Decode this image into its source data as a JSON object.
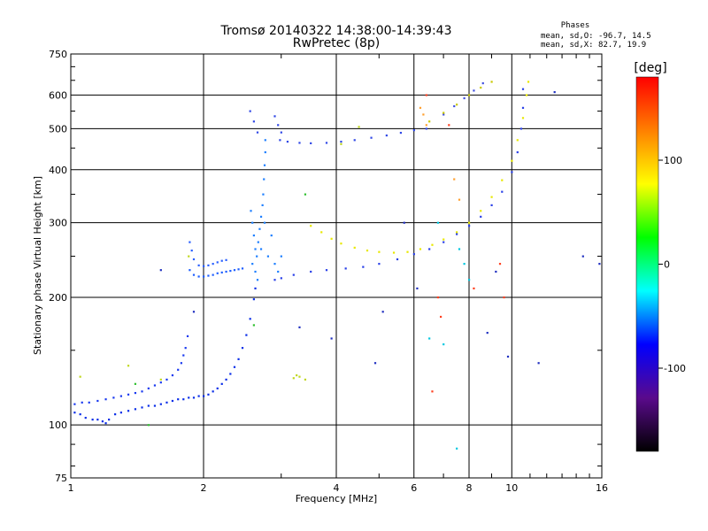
{
  "chart_data": {
    "type": "scatter",
    "title": "Tromsø 20140322 14:38:00-14:39:43",
    "subtitle": "RwPretec (8p)",
    "xlabel": "Frequency [MHz]",
    "ylabel": "Stationary phase Virtual Height [km]",
    "x_scale": "log",
    "y_scale": "log",
    "xlim": [
      1,
      16
    ],
    "ylim": [
      75,
      750
    ],
    "x_ticks": [
      1,
      2,
      4,
      6,
      8,
      10,
      16
    ],
    "y_ticks": [
      75,
      100,
      200,
      300,
      400,
      500,
      600,
      750
    ],
    "grid": true,
    "stats": {
      "heading": "Phases",
      "line_o": "mean, sd,O: -96.7, 14.5",
      "line_x": "mean, sd,X:  82.7, 19.9"
    },
    "colorbar": {
      "unit": "[deg]",
      "ticks": [
        100,
        0,
        -100
      ],
      "range": [
        -180,
        180
      ],
      "stops": [
        "#000000",
        "#5a0a8c",
        "#0000ff",
        "#00ffff",
        "#00ff00",
        "#ffff00",
        "#ff8000",
        "#ff0000"
      ]
    },
    "series": [
      {
        "color": "#0a2ee8",
        "points": [
          [
            1.02,
            107
          ],
          [
            1.05,
            106
          ],
          [
            1.08,
            104
          ],
          [
            1.12,
            103
          ],
          [
            1.15,
            103
          ],
          [
            1.18,
            102
          ],
          [
            1.2,
            101
          ],
          [
            1.22,
            103
          ],
          [
            1.26,
            106
          ],
          [
            1.3,
            107
          ],
          [
            1.35,
            108
          ],
          [
            1.4,
            109
          ],
          [
            1.45,
            110
          ],
          [
            1.5,
            111
          ],
          [
            1.55,
            111
          ],
          [
            1.6,
            112
          ],
          [
            1.65,
            113
          ],
          [
            1.7,
            114
          ],
          [
            1.75,
            115
          ],
          [
            1.8,
            115
          ],
          [
            1.85,
            116
          ],
          [
            1.9,
            116
          ],
          [
            1.95,
            117
          ],
          [
            2.0,
            117
          ],
          [
            2.05,
            118
          ],
          [
            2.1,
            120
          ],
          [
            2.15,
            122
          ],
          [
            2.2,
            125
          ],
          [
            2.25,
            128
          ],
          [
            2.3,
            132
          ],
          [
            2.35,
            137
          ],
          [
            2.4,
            143
          ],
          [
            2.45,
            152
          ],
          [
            2.5,
            163
          ],
          [
            2.55,
            178
          ],
          [
            2.6,
            198
          ],
          [
            2.62,
            210
          ]
        ]
      },
      {
        "color": "#1a3af0",
        "points": [
          [
            1.02,
            112
          ],
          [
            1.06,
            113
          ],
          [
            1.1,
            113
          ],
          [
            1.15,
            114
          ],
          [
            1.2,
            115
          ],
          [
            1.25,
            116
          ],
          [
            1.3,
            117
          ],
          [
            1.35,
            118
          ],
          [
            1.4,
            119
          ],
          [
            1.45,
            120
          ],
          [
            1.5,
            122
          ],
          [
            1.55,
            124
          ],
          [
            1.6,
            126
          ],
          [
            1.65,
            128
          ],
          [
            1.7,
            131
          ],
          [
            1.75,
            135
          ],
          [
            1.78,
            140
          ],
          [
            1.8,
            146
          ],
          [
            1.82,
            152
          ],
          [
            1.84,
            162
          ]
        ]
      },
      {
        "color": "#1f5fff",
        "points": [
          [
            1.86,
            232
          ],
          [
            1.9,
            226
          ],
          [
            1.95,
            224
          ],
          [
            2.0,
            224
          ],
          [
            2.05,
            225
          ],
          [
            2.1,
            226
          ],
          [
            2.15,
            228
          ],
          [
            2.2,
            229
          ],
          [
            2.25,
            230
          ],
          [
            2.3,
            231
          ],
          [
            2.35,
            232
          ],
          [
            2.4,
            233
          ],
          [
            2.45,
            234
          ]
        ]
      },
      {
        "color": "#2a60ff",
        "points": [
          [
            1.86,
            270
          ],
          [
            1.88,
            258
          ],
          [
            1.9,
            246
          ],
          [
            1.95,
            238
          ],
          [
            2.0,
            237
          ],
          [
            2.05,
            238
          ],
          [
            2.1,
            240
          ],
          [
            2.15,
            242
          ],
          [
            2.2,
            244
          ],
          [
            2.25,
            245
          ]
        ]
      },
      {
        "color": "#1e7fff",
        "points": [
          [
            2.62,
            230
          ],
          [
            2.64,
            250
          ],
          [
            2.66,
            270
          ],
          [
            2.68,
            290
          ],
          [
            2.7,
            310
          ],
          [
            2.72,
            330
          ],
          [
            2.73,
            350
          ],
          [
            2.74,
            380
          ],
          [
            2.75,
            410
          ],
          [
            2.76,
            440
          ],
          [
            2.76,
            470
          ],
          [
            2.62,
            260
          ],
          [
            2.6,
            280
          ],
          [
            2.58,
            300
          ],
          [
            2.56,
            320
          ],
          [
            2.58,
            240
          ],
          [
            2.7,
            260
          ],
          [
            2.8,
            250
          ],
          [
            2.85,
            280
          ],
          [
            2.9,
            240
          ],
          [
            2.95,
            230
          ],
          [
            3.0,
            250
          ],
          [
            2.65,
            220
          ],
          [
            2.75,
            300
          ]
        ]
      },
      {
        "color": "#2a40e8",
        "points": [
          [
            2.9,
            220
          ],
          [
            3.0,
            222
          ],
          [
            3.2,
            226
          ],
          [
            3.5,
            230
          ],
          [
            3.8,
            232
          ],
          [
            4.2,
            234
          ],
          [
            4.6,
            236
          ],
          [
            5.0,
            240
          ],
          [
            5.5,
            246
          ],
          [
            6.0,
            253
          ],
          [
            6.5,
            260
          ],
          [
            7.0,
            270
          ],
          [
            7.5,
            282
          ],
          [
            8.0,
            295
          ],
          [
            8.5,
            310
          ],
          [
            9.0,
            330
          ],
          [
            9.5,
            355
          ],
          [
            10.0,
            395
          ],
          [
            10.3,
            440
          ],
          [
            10.5,
            500
          ],
          [
            10.6,
            560
          ],
          [
            10.6,
            620
          ]
        ]
      },
      {
        "color": "#e8e800",
        "points": [
          [
            3.5,
            295
          ],
          [
            3.7,
            285
          ],
          [
            3.9,
            275
          ],
          [
            4.1,
            268
          ],
          [
            4.4,
            262
          ],
          [
            4.7,
            258
          ],
          [
            5.0,
            256
          ],
          [
            5.4,
            255
          ],
          [
            5.8,
            256
          ],
          [
            6.2,
            260
          ],
          [
            6.6,
            266
          ],
          [
            7.0,
            274
          ],
          [
            7.5,
            285
          ],
          [
            8.0,
            300
          ],
          [
            8.5,
            320
          ],
          [
            9.0,
            345
          ],
          [
            9.5,
            378
          ],
          [
            10.0,
            420
          ],
          [
            10.3,
            470
          ],
          [
            10.6,
            530
          ],
          [
            10.8,
            600
          ],
          [
            10.9,
            645
          ]
        ]
      },
      {
        "color": "#3048e6",
        "points": [
          [
            2.98,
            470
          ],
          [
            3.1,
            466
          ],
          [
            3.3,
            463
          ],
          [
            3.5,
            462
          ],
          [
            3.8,
            463
          ],
          [
            4.1,
            466
          ],
          [
            4.4,
            470
          ],
          [
            4.8,
            476
          ],
          [
            5.2,
            482
          ],
          [
            5.6,
            489
          ],
          [
            6.0,
            496
          ],
          [
            6.4,
            500
          ]
        ]
      },
      {
        "color": "#3048e6",
        "points": [
          [
            2.55,
            550
          ],
          [
            2.6,
            520
          ],
          [
            2.65,
            490
          ],
          [
            2.9,
            535
          ],
          [
            2.95,
            510
          ],
          [
            3.0,
            490
          ]
        ]
      },
      {
        "color": "#4050e0",
        "points": [
          [
            7.0,
            540
          ],
          [
            7.4,
            565
          ],
          [
            7.8,
            590
          ],
          [
            8.2,
            615
          ],
          [
            8.6,
            640
          ]
        ]
      },
      {
        "color": "#c8c800",
        "points": [
          [
            6.5,
            520
          ],
          [
            7.0,
            545
          ],
          [
            7.5,
            570
          ],
          [
            8.0,
            600
          ],
          [
            8.5,
            625
          ],
          [
            9.0,
            645
          ]
        ]
      },
      {
        "color": "#ffa030",
        "points": [
          [
            6.2,
            560
          ],
          [
            6.3,
            540
          ],
          [
            6.4,
            510
          ],
          [
            7.4,
            380
          ],
          [
            7.6,
            340
          ]
        ]
      },
      {
        "color": "#ff4020",
        "points": [
          [
            6.4,
            600
          ],
          [
            7.2,
            510
          ],
          [
            8.2,
            210
          ],
          [
            9.4,
            240
          ],
          [
            9.6,
            200
          ],
          [
            6.9,
            180
          ],
          [
            6.8,
            200
          ],
          [
            6.6,
            120
          ]
        ]
      },
      {
        "color": "#00c8e0",
        "points": [
          [
            6.8,
            300
          ],
          [
            7.6,
            260
          ],
          [
            7.8,
            240
          ],
          [
            8.0,
            220
          ],
          [
            7.5,
            88
          ],
          [
            6.5,
            160
          ],
          [
            7.0,
            155
          ]
        ]
      },
      {
        "color": "#c0d820",
        "points": [
          [
            3.2,
            129
          ],
          [
            3.25,
            131
          ],
          [
            3.3,
            130
          ],
          [
            3.4,
            128
          ],
          [
            1.05,
            130
          ],
          [
            1.35,
            138
          ],
          [
            1.6,
            128
          ],
          [
            1.85,
            250
          ],
          [
            4.1,
            460
          ],
          [
            4.5,
            505
          ]
        ]
      },
      {
        "color": "#30c030",
        "points": [
          [
            1.5,
            100
          ],
          [
            1.4,
            125
          ],
          [
            3.4,
            350
          ],
          [
            2.6,
            172
          ]
        ]
      },
      {
        "color": "#2030c0",
        "points": [
          [
            1.6,
            232
          ],
          [
            1.9,
            185
          ],
          [
            3.3,
            170
          ],
          [
            3.9,
            160
          ],
          [
            5.1,
            185
          ],
          [
            4.9,
            140
          ],
          [
            5.7,
            300
          ],
          [
            6.1,
            210
          ],
          [
            8.8,
            165
          ],
          [
            9.8,
            145
          ],
          [
            9.2,
            230
          ],
          [
            11.5,
            140
          ],
          [
            12.5,
            610
          ],
          [
            14.5,
            250
          ],
          [
            15.8,
            240
          ]
        ]
      }
    ]
  }
}
